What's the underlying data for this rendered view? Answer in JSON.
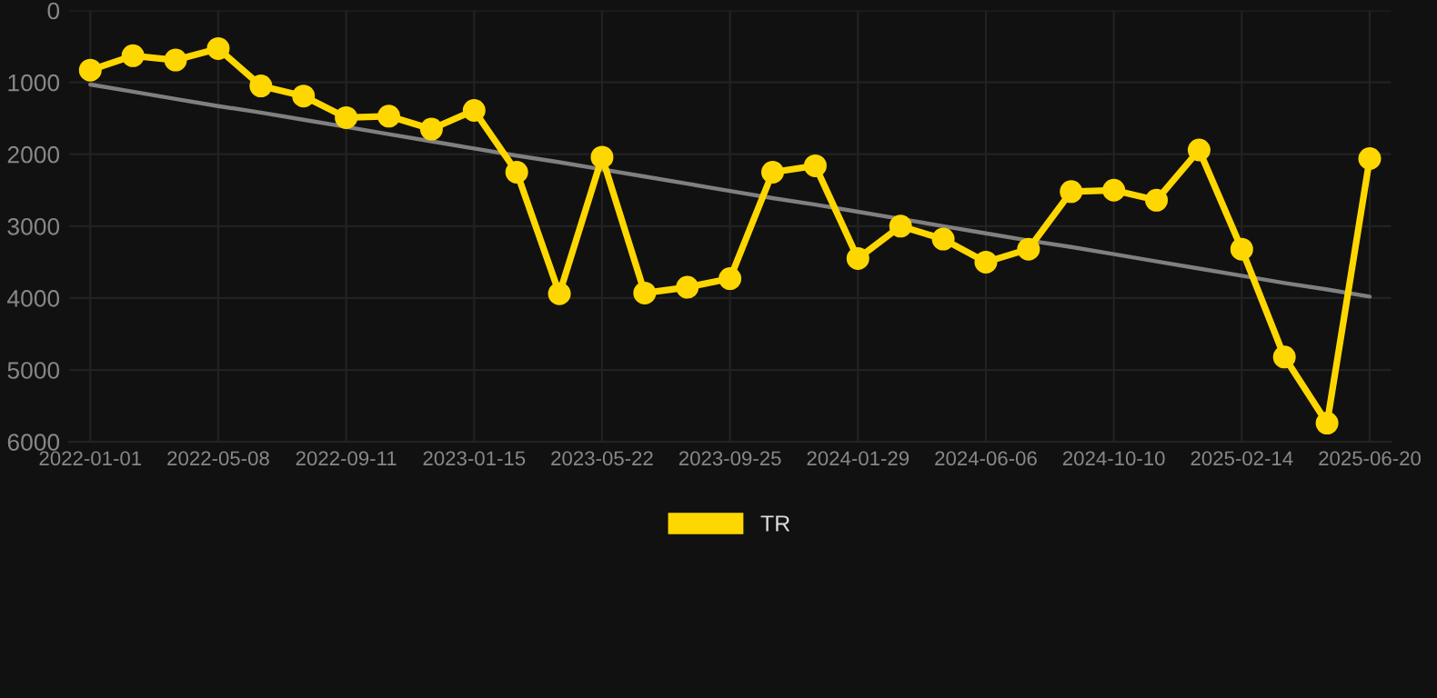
{
  "chart_data": {
    "type": "line",
    "categories": [
      "2022-01-01",
      null,
      null,
      "2022-05-08",
      null,
      null,
      "2022-09-11",
      null,
      null,
      "2023-01-15",
      null,
      null,
      "2023-05-22",
      null,
      null,
      "2023-09-25",
      null,
      null,
      "2024-01-29",
      null,
      null,
      "2024-06-06",
      null,
      null,
      "2024-10-10",
      null,
      null,
      "2025-02-14",
      null,
      null,
      "2025-06-20"
    ],
    "series": [
      {
        "name": "TR",
        "color": "#ffd700",
        "marker": "circle",
        "values": [
          830,
          630,
          690,
          530,
          1050,
          1190,
          1490,
          1470,
          1650,
          1390,
          2250,
          3940,
          2040,
          3930,
          3850,
          3730,
          2250,
          2160,
          3450,
          3000,
          3180,
          3500,
          3320,
          2520,
          2500,
          2640,
          1940,
          3320,
          4820,
          5740,
          2060
        ]
      },
      {
        "color": "#808080",
        "marker": "none",
        "values": [
          1030,
          1130,
          1230,
          1330,
          1420,
          1520,
          1620,
          1720,
          1820,
          1920,
          2020,
          2110,
          2210,
          2310,
          2410,
          2510,
          2610,
          2700,
          2800,
          2900,
          3000,
          3100,
          3200,
          3290,
          3390,
          3490,
          3590,
          3690,
          3790,
          3880,
          3980
        ]
      }
    ],
    "ylim": [
      6000,
      0
    ],
    "yticks": [
      0,
      1000,
      2000,
      3000,
      4000,
      5000,
      6000
    ],
    "grid": true,
    "legend": "bottom",
    "line_style": "solid"
  }
}
